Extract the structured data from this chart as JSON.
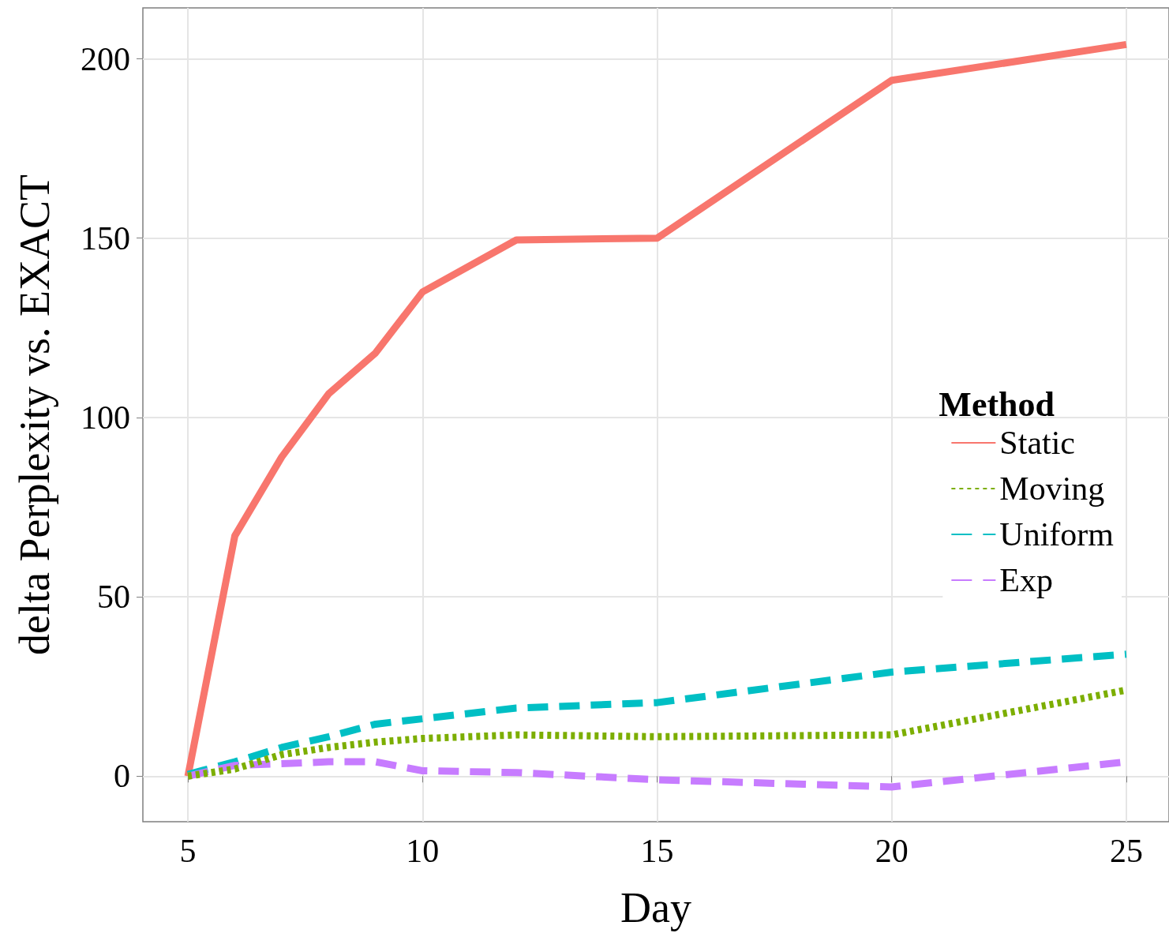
{
  "chart_data": {
    "type": "line",
    "xlabel": "Day",
    "ylabel": "delta Perplexity vs. EXACT",
    "legend_title": "Method",
    "legend": "right",
    "grid": true,
    "marker": "none",
    "xlim": [
      4.04,
      25.91
    ],
    "xticks": [
      5,
      10,
      15,
      20,
      25
    ],
    "ylim": [
      -12.7,
      214.2
    ],
    "yticks": [
      0,
      50,
      100,
      150,
      200
    ],
    "x": [
      5,
      6,
      7,
      8,
      9,
      10,
      12,
      15,
      20,
      25
    ],
    "series": [
      {
        "name": "Static",
        "color": "#f8766d",
        "line_style": "solid",
        "values": [
          0,
          67,
          89,
          106.6,
          118,
          135,
          149.5,
          150,
          194,
          204
        ]
      },
      {
        "name": "Moving",
        "color": "#7cae00",
        "line_style": "dotted",
        "values": [
          0,
          2,
          6,
          8,
          9.5,
          10.5,
          11.5,
          11,
          11.5,
          24
        ]
      },
      {
        "name": "Uniform",
        "color": "#00bfc4",
        "line_style": "dashed",
        "values": [
          0.5,
          4,
          8,
          11,
          14.5,
          16,
          19,
          20.5,
          29,
          34
        ]
      },
      {
        "name": "Exp",
        "color": "#c77cff",
        "line_style": "dashed",
        "values": [
          0,
          3,
          3.5,
          4,
          4,
          1.5,
          1,
          -1,
          -3,
          4
        ]
      }
    ]
  }
}
